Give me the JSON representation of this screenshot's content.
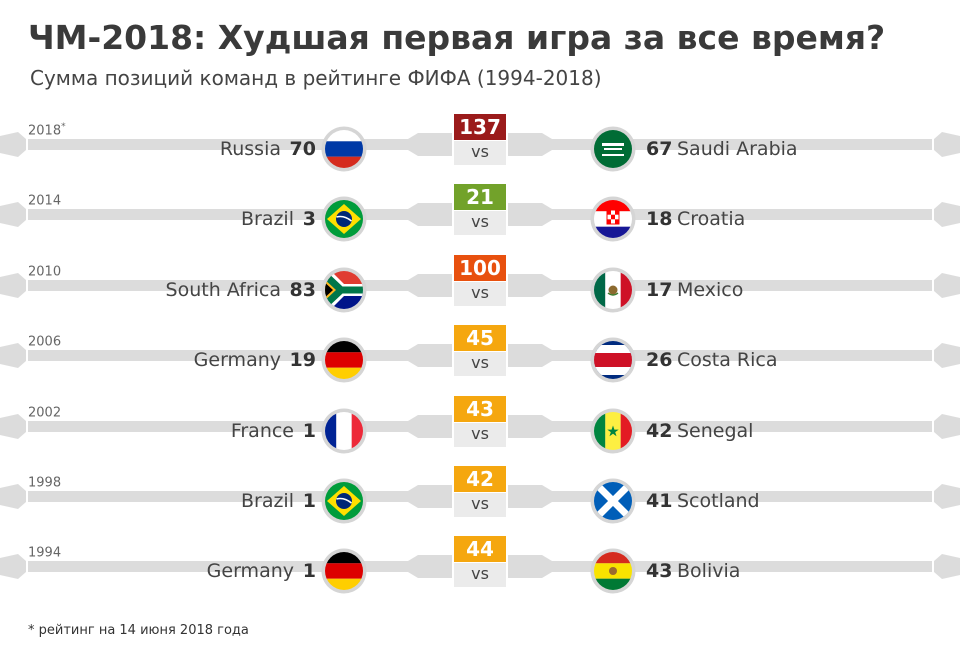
{
  "title": "ЧМ-2018: Худшая первая игра за все время?",
  "subtitle": "Сумма позиций команд в рейтинге ФИФА (1994-2018)",
  "vs_label": "vs",
  "footnote": "* рейтинг на 14 июня 2018 года",
  "colors": {
    "band": "#dcdcdc",
    "vs_box": "#ebebeb",
    "sum_137": "#9b1b1b",
    "sum_100": "#e8500e",
    "sum_mid": "#f5a70f",
    "sum_21": "#72a22a"
  },
  "chart_data": {
    "type": "table",
    "columns": [
      "year",
      "team_left",
      "rank_left",
      "sum",
      "team_right",
      "rank_right"
    ],
    "rows": [
      {
        "year": "2018",
        "year_mark": "*",
        "team_left": "Russia",
        "rank_left": "70",
        "flag_left": "russia-flag-icon",
        "sum": "137",
        "sum_color": "#9b1b1b",
        "team_right": "Saudi Arabia",
        "rank_right": "67",
        "flag_right": "saudi-arabia-flag-icon"
      },
      {
        "year": "2014",
        "year_mark": "",
        "team_left": "Brazil",
        "rank_left": "3",
        "flag_left": "brazil-flag-icon",
        "sum": "21",
        "sum_color": "#72a22a",
        "team_right": "Croatia",
        "rank_right": "18",
        "flag_right": "croatia-flag-icon"
      },
      {
        "year": "2010",
        "year_mark": "",
        "team_left": "South Africa",
        "rank_left": "83",
        "flag_left": "south-africa-flag-icon",
        "sum": "100",
        "sum_color": "#e8500e",
        "team_right": "Mexico",
        "rank_right": "17",
        "flag_right": "mexico-flag-icon"
      },
      {
        "year": "2006",
        "year_mark": "",
        "team_left": "Germany",
        "rank_left": "19",
        "flag_left": "germany-flag-icon",
        "sum": "45",
        "sum_color": "#f5a70f",
        "team_right": "Costa Rica",
        "rank_right": "26",
        "flag_right": "costa-rica-flag-icon"
      },
      {
        "year": "2002",
        "year_mark": "",
        "team_left": "France",
        "rank_left": "1",
        "flag_left": "france-flag-icon",
        "sum": "43",
        "sum_color": "#f5a70f",
        "team_right": "Senegal",
        "rank_right": "42",
        "flag_right": "senegal-flag-icon"
      },
      {
        "year": "1998",
        "year_mark": "",
        "team_left": "Brazil",
        "rank_left": "1",
        "flag_left": "brazil-flag-icon",
        "sum": "42",
        "sum_color": "#f5a70f",
        "team_right": "Scotland",
        "rank_right": "41",
        "flag_right": "scotland-flag-icon"
      },
      {
        "year": "1994",
        "year_mark": "",
        "team_left": "Germany",
        "rank_left": "1",
        "flag_left": "germany-flag-icon",
        "sum": "44",
        "sum_color": "#f5a70f",
        "team_right": "Bolivia",
        "rank_right": "43",
        "flag_right": "bolivia-flag-icon"
      }
    ]
  }
}
